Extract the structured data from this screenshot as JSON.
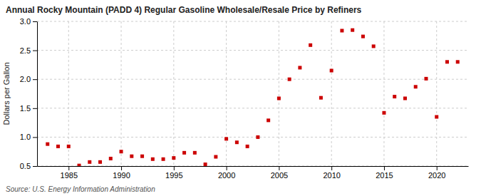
{
  "chart_data": {
    "type": "scatter",
    "title": "Annual Rocky Mountain (PADD 4) Regular Gasoline Wholesale/Resale Price by Refiners",
    "ylabel": "Dollars per Gallon",
    "annotations": [
      "Source: U.S. Energy Information Administration"
    ],
    "x": [
      1983,
      1984,
      1985,
      1986,
      1987,
      1988,
      1989,
      1990,
      1991,
      1992,
      1993,
      1994,
      1995,
      1996,
      1997,
      1998,
      1999,
      2000,
      2001,
      2002,
      2003,
      2004,
      2005,
      2006,
      2007,
      2008,
      2009,
      2010,
      2011,
      2012,
      2013,
      2014,
      2015,
      2016,
      2017,
      2018,
      2019,
      2020,
      2021,
      2022
    ],
    "values": [
      0.88,
      0.84,
      0.84,
      0.51,
      0.57,
      0.57,
      0.63,
      0.75,
      0.67,
      0.67,
      0.62,
      0.62,
      0.64,
      0.73,
      0.73,
      0.53,
      0.66,
      0.97,
      0.91,
      0.84,
      1.0,
      1.29,
      1.67,
      2.0,
      2.2,
      2.59,
      1.68,
      2.15,
      2.84,
      2.85,
      2.74,
      2.57,
      1.42,
      1.7,
      1.67,
      1.87,
      2.01,
      1.35,
      2.3,
      2.3
    ],
    "color": "#cc0000",
    "marker": "square",
    "xlim": [
      1982,
      2023
    ],
    "ylim": [
      0.5,
      3.0
    ],
    "xticks": [
      1985,
      1990,
      1995,
      2000,
      2005,
      2010,
      2015,
      2020
    ],
    "yticks": [
      0.5,
      {
        "value": 1.0,
        "label": "1.0"
      },
      1.5,
      {
        "value": 2.0,
        "label": "2.0"
      },
      2.5,
      {
        "value": 3.0,
        "label": "3.0"
      }
    ],
    "grid": true
  }
}
